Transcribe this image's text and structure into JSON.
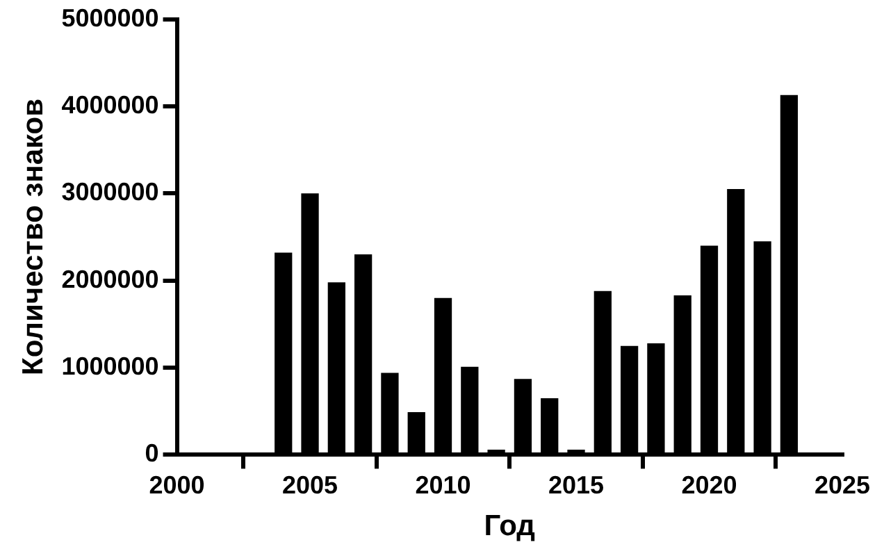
{
  "chart_data": {
    "type": "bar",
    "xlabel": "Год",
    "ylabel": "Количество знаков",
    "x": [
      2004,
      2005,
      2006,
      2007,
      2008,
      2009,
      2010,
      2011,
      2012,
      2013,
      2014,
      2015,
      2016,
      2017,
      2018,
      2019,
      2020,
      2021,
      2022,
      2023
    ],
    "values": [
      2320000,
      3000000,
      1980000,
      2300000,
      940000,
      490000,
      1800000,
      1010000,
      60000,
      870000,
      650000,
      60000,
      1880000,
      1250000,
      1280000,
      1830000,
      2400000,
      3050000,
      2450000,
      4130000
    ],
    "color": "#000000",
    "xlim": [
      2000,
      2025
    ],
    "xticks": [
      2000,
      2005,
      2010,
      2015,
      2020,
      2025
    ],
    "ylim": [
      0,
      5000000
    ],
    "yticks": [
      0,
      1000000,
      2000000,
      3000000,
      4000000,
      5000000
    ],
    "grid": false
  }
}
